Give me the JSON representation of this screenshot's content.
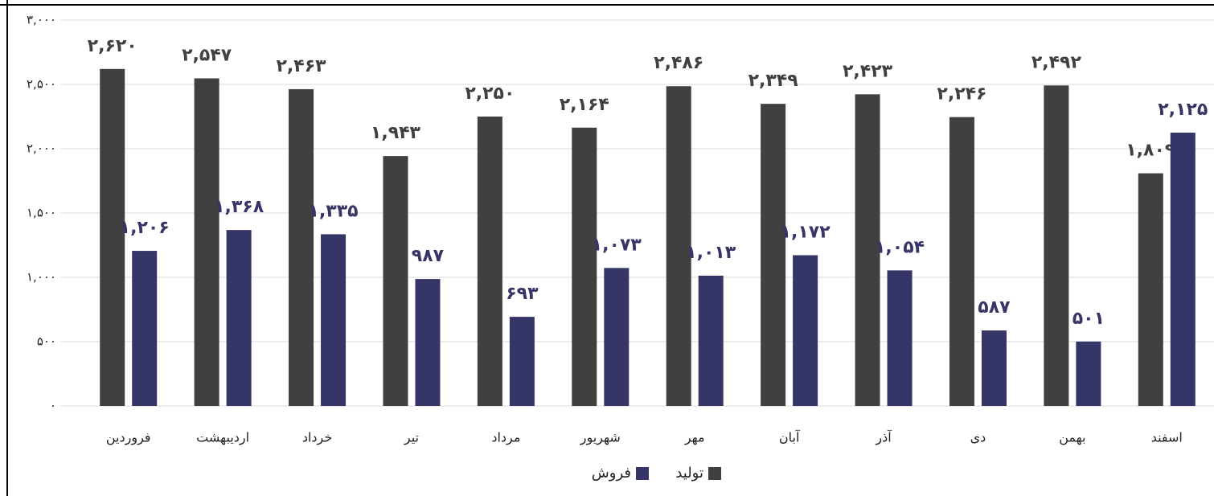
{
  "chart_data": {
    "type": "bar",
    "categories": [
      "فروردین",
      "اردیبهشت",
      "خرداد",
      "تیر",
      "مرداد",
      "شهریور",
      "مهر",
      "آبان",
      "آذر",
      "دی",
      "بهمن",
      "اسفند"
    ],
    "series": [
      {
        "name": "تولید",
        "color": "#404040",
        "values": [
          2620,
          2547,
          2463,
          1943,
          2250,
          2164,
          2486,
          2349,
          2423,
          2246,
          2492,
          1809
        ],
        "value_labels": [
          "۲,۶۲۰",
          "۲,۵۴۷",
          "۲,۴۶۳",
          "۱,۹۴۳",
          "۲,۲۵۰",
          "۲,۱۶۴",
          "۲,۴۸۶",
          "۲,۳۴۹",
          "۲,۴۲۳",
          "۲,۲۴۶",
          "۲,۴۹۲",
          "۱,۸۰۹"
        ]
      },
      {
        "name": "فروش",
        "color": "#363567",
        "values": [
          1206,
          1368,
          1335,
          987,
          693,
          1073,
          1013,
          1172,
          1054,
          587,
          501,
          2125
        ],
        "value_labels": [
          "۱,۲۰۶",
          "۱,۳۶۸",
          "۱,۳۳۵",
          "۹۸۷",
          "۶۹۳",
          "۱,۰۷۳",
          "۱,۰۱۳",
          "۱,۱۷۲",
          "۱,۰۵۴",
          "۵۸۷",
          "۵۰۱",
          "۲,۱۲۵"
        ]
      }
    ],
    "ylim": [
      0,
      3000
    ],
    "yticks": [
      {
        "value": 0,
        "label": "۰"
      },
      {
        "value": 500,
        "label": "۵۰۰"
      },
      {
        "value": 1000,
        "label": "۱,۰۰۰"
      },
      {
        "value": 1500,
        "label": "۱,۵۰۰"
      },
      {
        "value": 2000,
        "label": "۲,۰۰۰"
      },
      {
        "value": 2500,
        "label": "۲,۵۰۰"
      },
      {
        "value": 3000,
        "label": "۳,۰۰۰"
      }
    ],
    "grid": true,
    "legend": "bottom"
  }
}
